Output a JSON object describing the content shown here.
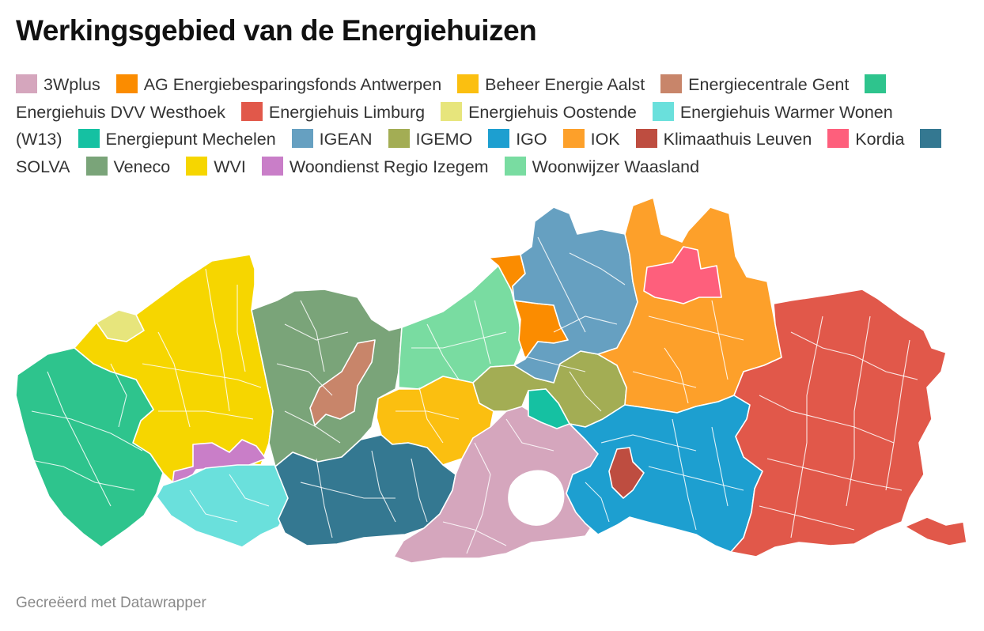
{
  "title": "Werkingsgebied van de Energiehuizen",
  "legend": [
    {
      "label": "3Wplus",
      "color": "#d5a6bd"
    },
    {
      "label": "AG Energiebesparingsfonds Antwerpen",
      "color": "#fb8c00"
    },
    {
      "label": "Beheer Energie Aalst",
      "color": "#fbbf10"
    },
    {
      "label": "Energiecentrale Gent",
      "color": "#c8856a"
    },
    {
      "label": "Energiehuis DVV Westhoek",
      "color": "#2ec48d"
    },
    {
      "label": "Energiehuis Limburg",
      "color": "#e1584a"
    },
    {
      "label": "Energiehuis Oostende",
      "color": "#e7e57c"
    },
    {
      "label": "Energiehuis Warmer Wonen (W13)",
      "color": "#6ae0dc"
    },
    {
      "label": "Energiepunt Mechelen",
      "color": "#15c1a2"
    },
    {
      "label": "IGEAN",
      "color": "#66a0c1"
    },
    {
      "label": "IGEMO",
      "color": "#a3ad54"
    },
    {
      "label": "IGO",
      "color": "#1d9fd0"
    },
    {
      "label": "IOK",
      "color": "#fda02a"
    },
    {
      "label": "Klimaathuis Leuven",
      "color": "#be4d40"
    },
    {
      "label": "Kordia",
      "color": "#fe5f7c"
    },
    {
      "label": "SOLVA",
      "color": "#347891"
    },
    {
      "label": "Veneco",
      "color": "#7aa479"
    },
    {
      "label": "WVI",
      "color": "#f6d600"
    },
    {
      "label": "Woondienst Regio Izegem",
      "color": "#c97ec8"
    },
    {
      "label": "Woonwijzer Waasland",
      "color": "#79dca1"
    }
  ],
  "footer": "Gecreëerd met Datawrapper"
}
